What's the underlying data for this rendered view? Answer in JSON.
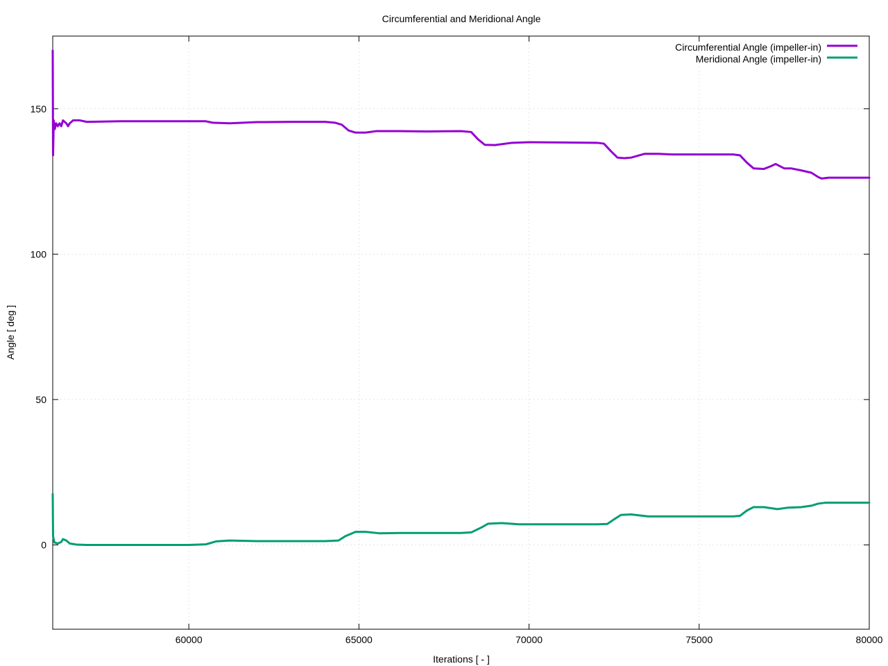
{
  "chart_data": {
    "type": "line",
    "title": "Circumferential and Meridional Angle",
    "xlabel": "Iterations [ - ]",
    "ylabel": "Angle [ deg ]",
    "xlim": [
      56000,
      80000
    ],
    "ylim": [
      -29,
      175
    ],
    "xticks": [
      60000,
      65000,
      70000,
      75000,
      80000
    ],
    "yticks": [
      0,
      50,
      100,
      150
    ],
    "grid": true,
    "legend_position": "top-right",
    "series": [
      {
        "name": "Circumferential Angle (impeller-in)",
        "color": "#9400d3",
        "points": [
          [
            56000,
            170
          ],
          [
            56010,
            134
          ],
          [
            56030,
            146
          ],
          [
            56060,
            143
          ],
          [
            56100,
            145
          ],
          [
            56150,
            144
          ],
          [
            56200,
            145
          ],
          [
            56250,
            144
          ],
          [
            56300,
            146
          ],
          [
            56400,
            145
          ],
          [
            56450,
            144
          ],
          [
            56500,
            145
          ],
          [
            56600,
            146
          ],
          [
            56800,
            146
          ],
          [
            57000,
            145.5
          ],
          [
            58000,
            145.7
          ],
          [
            59000,
            145.7
          ],
          [
            60000,
            145.7
          ],
          [
            60500,
            145.7
          ],
          [
            60700,
            145.2
          ],
          [
            61200,
            145.0
          ],
          [
            62000,
            145.4
          ],
          [
            63000,
            145.5
          ],
          [
            64000,
            145.5
          ],
          [
            64300,
            145.2
          ],
          [
            64500,
            144.5
          ],
          [
            64700,
            142.5
          ],
          [
            64900,
            141.8
          ],
          [
            65200,
            141.8
          ],
          [
            65500,
            142.3
          ],
          [
            66200,
            142.3
          ],
          [
            67000,
            142.2
          ],
          [
            68000,
            142.3
          ],
          [
            68300,
            142.0
          ],
          [
            68500,
            139.5
          ],
          [
            68700,
            137.6
          ],
          [
            69000,
            137.5
          ],
          [
            69500,
            138.3
          ],
          [
            70000,
            138.5
          ],
          [
            71000,
            138.4
          ],
          [
            72000,
            138.3
          ],
          [
            72200,
            138.0
          ],
          [
            72400,
            135.5
          ],
          [
            72600,
            133.2
          ],
          [
            72800,
            133.0
          ],
          [
            73000,
            133.2
          ],
          [
            73400,
            134.5
          ],
          [
            73800,
            134.5
          ],
          [
            74200,
            134.3
          ],
          [
            75000,
            134.3
          ],
          [
            76000,
            134.3
          ],
          [
            76200,
            134.0
          ],
          [
            76400,
            131.5
          ],
          [
            76600,
            129.5
          ],
          [
            76900,
            129.3
          ],
          [
            77100,
            130.2
          ],
          [
            77250,
            131.0
          ],
          [
            77500,
            129.5
          ],
          [
            77700,
            129.5
          ],
          [
            78000,
            128.8
          ],
          [
            78300,
            128.0
          ],
          [
            78500,
            126.5
          ],
          [
            78600,
            126.0
          ],
          [
            78800,
            126.3
          ],
          [
            80000,
            126.3
          ]
        ]
      },
      {
        "name": "Meridional Angle (impeller-in)",
        "color": "#009e73",
        "points": [
          [
            56000,
            17.5
          ],
          [
            56010,
            3
          ],
          [
            56050,
            0.8
          ],
          [
            56150,
            0.5
          ],
          [
            56250,
            1.0
          ],
          [
            56300,
            2.0
          ],
          [
            56400,
            1.5
          ],
          [
            56500,
            0.5
          ],
          [
            56700,
            0.1
          ],
          [
            57000,
            0.0
          ],
          [
            60000,
            0.0
          ],
          [
            60500,
            0.2
          ],
          [
            60800,
            1.2
          ],
          [
            61200,
            1.5
          ],
          [
            62000,
            1.3
          ],
          [
            63000,
            1.3
          ],
          [
            64000,
            1.3
          ],
          [
            64400,
            1.5
          ],
          [
            64600,
            3.0
          ],
          [
            64900,
            4.5
          ],
          [
            65200,
            4.5
          ],
          [
            65600,
            4.0
          ],
          [
            66200,
            4.1
          ],
          [
            67000,
            4.1
          ],
          [
            68000,
            4.1
          ],
          [
            68300,
            4.3
          ],
          [
            68600,
            6.0
          ],
          [
            68800,
            7.3
          ],
          [
            69200,
            7.5
          ],
          [
            69700,
            7.1
          ],
          [
            70000,
            7.1
          ],
          [
            71000,
            7.1
          ],
          [
            72000,
            7.1
          ],
          [
            72300,
            7.2
          ],
          [
            72500,
            8.8
          ],
          [
            72700,
            10.3
          ],
          [
            73000,
            10.5
          ],
          [
            73500,
            9.8
          ],
          [
            74000,
            9.8
          ],
          [
            75000,
            9.8
          ],
          [
            76000,
            9.8
          ],
          [
            76200,
            10.0
          ],
          [
            76400,
            11.8
          ],
          [
            76600,
            13.0
          ],
          [
            76900,
            13.0
          ],
          [
            77300,
            12.3
          ],
          [
            77600,
            12.8
          ],
          [
            78000,
            13.0
          ],
          [
            78300,
            13.5
          ],
          [
            78500,
            14.2
          ],
          [
            78700,
            14.5
          ],
          [
            79000,
            14.5
          ],
          [
            80000,
            14.5
          ]
        ]
      }
    ]
  }
}
